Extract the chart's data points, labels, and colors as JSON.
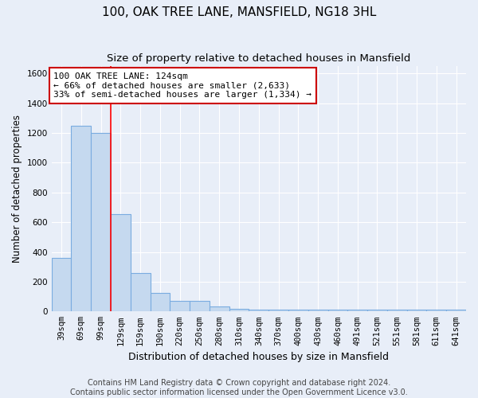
{
  "title": "100, OAK TREE LANE, MANSFIELD, NG18 3HL",
  "subtitle": "Size of property relative to detached houses in Mansfield",
  "xlabel": "Distribution of detached houses by size in Mansfield",
  "ylabel": "Number of detached properties",
  "bar_color": "#c5d9ef",
  "bar_edge_color": "#7aace0",
  "categories": [
    "39sqm",
    "69sqm",
    "99sqm",
    "129sqm",
    "159sqm",
    "190sqm",
    "220sqm",
    "250sqm",
    "280sqm",
    "310sqm",
    "340sqm",
    "370sqm",
    "400sqm",
    "430sqm",
    "460sqm",
    "491sqm",
    "521sqm",
    "551sqm",
    "581sqm",
    "611sqm",
    "641sqm"
  ],
  "values": [
    360,
    1250,
    1200,
    655,
    260,
    125,
    70,
    70,
    33,
    20,
    13,
    13,
    10,
    10,
    10,
    10,
    10,
    10,
    10,
    10,
    13
  ],
  "ylim": [
    0,
    1650
  ],
  "yticks": [
    0,
    200,
    400,
    600,
    800,
    1000,
    1200,
    1400,
    1600
  ],
  "property_line_x": 2.5,
  "annotation_line1": "100 OAK TREE LANE: 124sqm",
  "annotation_line2": "← 66% of detached houses are smaller (2,633)",
  "annotation_line3": "33% of semi-detached houses are larger (1,334) →",
  "annotation_box_color": "#ffffff",
  "annotation_box_edgecolor": "#cc0000",
  "footer_text": "Contains HM Land Registry data © Crown copyright and database right 2024.\nContains public sector information licensed under the Open Government Licence v3.0.",
  "background_color": "#e8eef8",
  "grid_color": "#ffffff",
  "title_fontsize": 11,
  "subtitle_fontsize": 9.5,
  "xlabel_fontsize": 9,
  "ylabel_fontsize": 8.5,
  "tick_fontsize": 7.5,
  "annotation_fontsize": 8,
  "footer_fontsize": 7
}
